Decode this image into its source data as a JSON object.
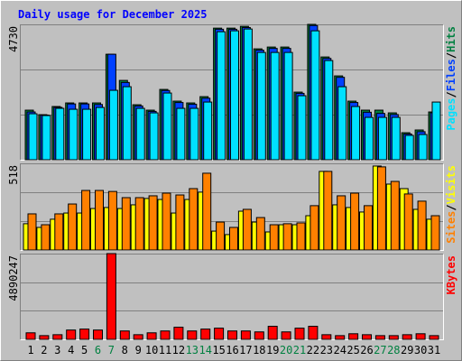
{
  "chart_data": {
    "type": "bar",
    "title": "Daily usage for December 2025",
    "categories": [
      "1",
      "2",
      "3",
      "4",
      "5",
      "6",
      "7",
      "8",
      "9",
      "10",
      "11",
      "12",
      "13",
      "14",
      "15",
      "16",
      "17",
      "18",
      "19",
      "20",
      "21",
      "22",
      "23",
      "24",
      "25",
      "26",
      "27",
      "28",
      "29",
      "30",
      "31"
    ],
    "highlight_categories": [
      "6",
      "7",
      "13",
      "14",
      "20",
      "21",
      "27",
      "28"
    ],
    "highlight_color": "#008040",
    "legend_separator": "/",
    "panels": [
      {
        "ylim": [
          0,
          4730
        ],
        "yticks": [
          4730
        ],
        "series": [
          {
            "name": "Hits",
            "color": "#008040",
            "values": [
              1733,
              1575,
              1860,
              1985,
              1985,
              1985,
              3686,
              2772,
              1922,
              1733,
              2457,
              2048,
              1985,
              2205,
              4599,
              4599,
              4662,
              3875,
              3938,
              3938,
              2363,
              4730,
              3591,
              2930,
              2048,
              1733,
              1733,
              1638,
              945,
              1040,
              1670
            ]
          },
          {
            "name": "Files",
            "color": "#0040ff",
            "values": [
              1670,
              1560,
              1830,
              1950,
              1950,
              1930,
              3686,
              2700,
              1880,
              1690,
              2420,
              2000,
              1940,
              2150,
              4560,
              4560,
              4620,
              3830,
              3890,
              3890,
              2320,
              4690,
              3540,
              2880,
              2000,
              1660,
              1620,
              1580,
              900,
              980,
              1640
            ]
          },
          {
            "name": "Pages",
            "color": "#00e0ff",
            "values": [
              1607,
              1544,
              1796,
              1764,
              1764,
              1827,
              2426,
              2552,
              1796,
              1638,
              2331,
              1796,
              1796,
              2016,
              4473,
              4505,
              4568,
              3749,
              3749,
              3749,
              2237,
              4505,
              3466,
              2552,
              1860,
              1481,
              1481,
              1481,
              851,
              882,
              2016
            ]
          }
        ]
      },
      {
        "ylim": [
          0,
          518
        ],
        "yticks": [
          518
        ],
        "series": [
          {
            "name": "Visits",
            "color": "#ffff00",
            "values": [
              157,
              135,
              184,
              221,
              221,
              248,
              254,
              248,
              270,
              308,
              302,
              221,
              302,
              346,
              113,
              92,
              232,
              167,
              108,
              151,
              151,
              205,
              470,
              270,
              254,
              227,
              502,
              394,
              367,
              243,
              184
            ]
          },
          {
            "name": "Sites",
            "color": "#ff8000",
            "values": [
              216,
              151,
              216,
              275,
              356,
              356,
              350,
              313,
              313,
              324,
              340,
              329,
              367,
              459,
              167,
              135,
              243,
              194,
              151,
              157,
              162,
              265,
              470,
              324,
              340,
              265,
              497,
              410,
              335,
              292,
              205
            ]
          }
        ]
      },
      {
        "ylim": [
          0,
          4890247
        ],
        "yticks": [
          4890247
        ],
        "series": [
          {
            "name": "KBytes",
            "color": "#ff0000",
            "values": [
              372000,
              212000,
              265000,
              531000,
              585000,
              531000,
              4890247,
              478000,
              265000,
              372000,
              478000,
              691000,
              478000,
              585000,
              638000,
              478000,
              478000,
              425000,
              744000,
              425000,
              638000,
              744000,
              265000,
              212000,
              319000,
              265000,
              212000,
              212000,
              265000,
              319000,
              212000
            ]
          }
        ]
      }
    ]
  }
}
